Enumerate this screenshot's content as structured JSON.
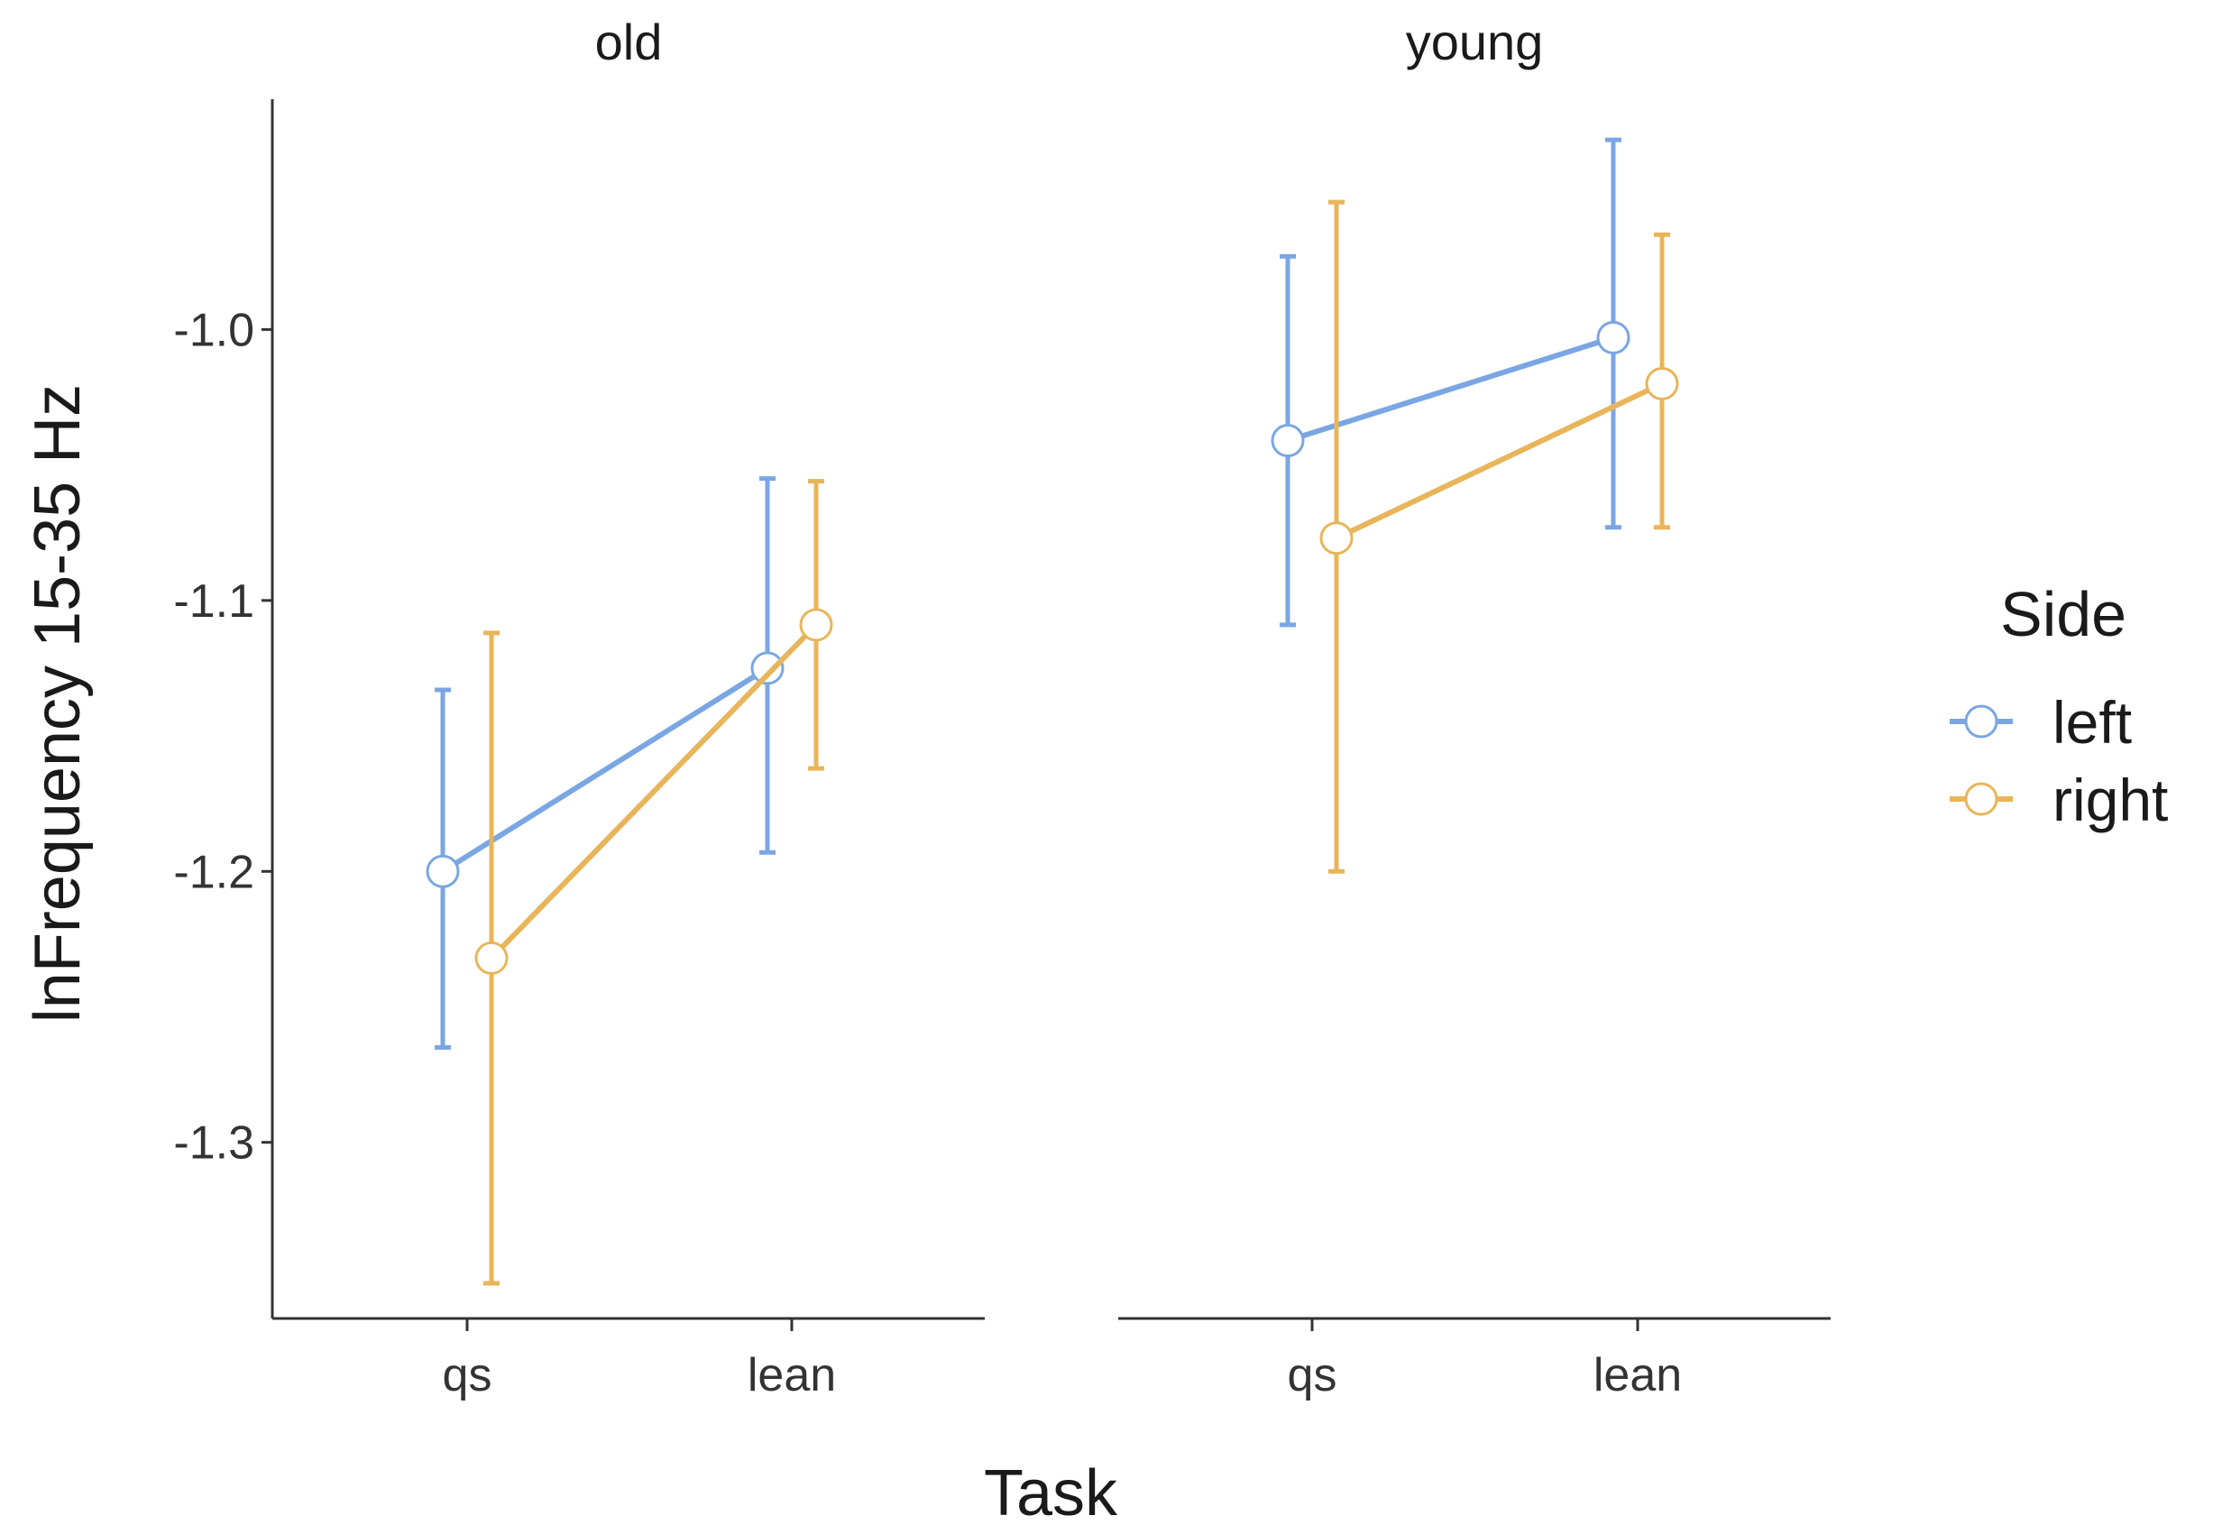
{
  "chart_data": {
    "type": "line",
    "xlabel": "Task",
    "ylabel": "lnFrequency 15-35 Hz",
    "categories": [
      "qs",
      "lean"
    ],
    "ylim": [
      -1.365,
      -0.915
    ],
    "yticks": [
      -1.0,
      -1.1,
      -1.2,
      -1.3
    ],
    "ytick_labels": [
      "-1.0",
      "-1.1",
      "-1.2",
      "-1.3"
    ],
    "grid": false,
    "legend": {
      "title": "Side",
      "placement": "right"
    },
    "colors": {
      "left": "#7aa6e3",
      "right": "#e8b55a",
      "axis": "#333333"
    },
    "panels": [
      {
        "label": "old",
        "series": [
          {
            "name": "left",
            "values": [
              -1.2,
              -1.125
            ],
            "lower": [
              -1.265,
              -1.193
            ],
            "upper": [
              -1.133,
              -1.055
            ]
          },
          {
            "name": "right",
            "values": [
              -1.232,
              -1.109
            ],
            "lower": [
              -1.352,
              -1.162
            ],
            "upper": [
              -1.112,
              -1.056
            ]
          }
        ]
      },
      {
        "label": "young",
        "series": [
          {
            "name": "left",
            "values": [
              -1.041,
              -1.003
            ],
            "lower": [
              -1.109,
              -1.073
            ],
            "upper": [
              -0.973,
              -0.93
            ]
          },
          {
            "name": "right",
            "values": [
              -1.077,
              -1.02
            ],
            "lower": [
              -1.2,
              -1.073
            ],
            "upper": [
              -0.953,
              -0.965
            ]
          }
        ]
      }
    ]
  }
}
